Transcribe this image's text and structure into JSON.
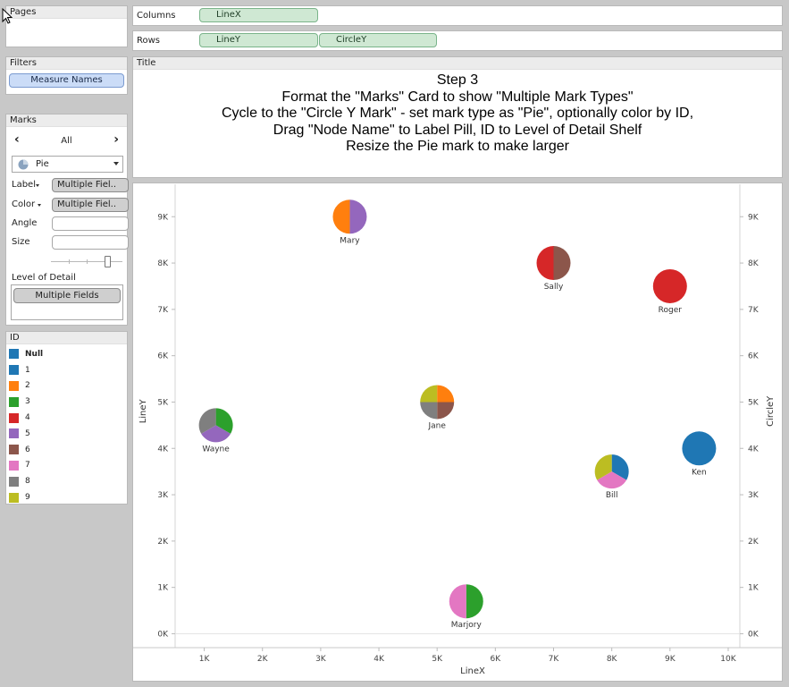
{
  "pages": {
    "title": "Pages"
  },
  "filters": {
    "title": "Filters",
    "items": [
      "Measure Names"
    ]
  },
  "marks": {
    "title": "Marks",
    "selector": {
      "prev": "‹",
      "label": "All",
      "next": "›"
    },
    "mark_type": "Pie",
    "label_shelf": {
      "label": "Label",
      "value": "Multiple Fiel.."
    },
    "color_shelf": {
      "label": "Color",
      "value": "Multiple Fiel.."
    },
    "angle_label": "Angle",
    "size_label": "Size",
    "size_slider": 0.8,
    "lod_title": "Level of Detail",
    "lod_value": "Multiple Fields"
  },
  "legend": {
    "title": "ID",
    "items": [
      {
        "label": "Null",
        "color": "#1f77b4"
      },
      {
        "label": "1",
        "color": "#1f77b4"
      },
      {
        "label": "2",
        "color": "#ff7f0e"
      },
      {
        "label": "3",
        "color": "#2ca02c"
      },
      {
        "label": "4",
        "color": "#d62728"
      },
      {
        "label": "5",
        "color": "#9467bd"
      },
      {
        "label": "6",
        "color": "#8c564b"
      },
      {
        "label": "7",
        "color": "#e377c2"
      },
      {
        "label": "8",
        "color": "#7f7f7f"
      },
      {
        "label": "9",
        "color": "#bcbd22"
      }
    ]
  },
  "columns": {
    "label": "Columns",
    "pill": "LineX"
  },
  "rows": {
    "label": "Rows",
    "pills": [
      "LineY",
      "CircleY"
    ]
  },
  "title_panel": {
    "title": "Title",
    "lines": [
      "Step 3",
      "Format the \"Marks\" Card to show \"Multiple Mark Types\"",
      "Cycle to the \"Circle Y Mark\"  - set mark type as \"Pie\", optionally color by ID,",
      "Drag \"Node Name\" to Label Pill, ID to Level of Detail Shelf",
      "Resize the Pie mark to make larger"
    ]
  },
  "chart_data": {
    "type": "scatter",
    "xlabel": "LineX",
    "ylabel": "LineY",
    "y2label": "CircleY",
    "xlim": [
      500,
      10200
    ],
    "ylim": [
      -300,
      9700
    ],
    "xticks": [
      1000,
      2000,
      3000,
      4000,
      5000,
      6000,
      7000,
      8000,
      9000,
      10000
    ],
    "xtick_labels": [
      "1K",
      "2K",
      "3K",
      "4K",
      "5K",
      "6K",
      "7K",
      "8K",
      "9K",
      "10K"
    ],
    "yticks": [
      0,
      1000,
      2000,
      3000,
      4000,
      5000,
      6000,
      7000,
      8000,
      9000
    ],
    "ytick_labels": [
      "0K",
      "1K",
      "2K",
      "3K",
      "4K",
      "5K",
      "6K",
      "7K",
      "8K",
      "9K"
    ],
    "points": [
      {
        "name": "Mary",
        "x": 3500,
        "y": 9000,
        "slices": [
          {
            "id": "5",
            "color": "#9467bd",
            "value": 1
          },
          {
            "id": "2",
            "color": "#ff7f0e",
            "value": 1
          }
        ]
      },
      {
        "name": "Sally",
        "x": 7000,
        "y": 8000,
        "slices": [
          {
            "id": "6",
            "color": "#8c564b",
            "value": 1
          },
          {
            "id": "4",
            "color": "#d62728",
            "value": 1
          }
        ]
      },
      {
        "name": "Roger",
        "x": 9000,
        "y": 7500,
        "slices": [
          {
            "id": "4",
            "color": "#d62728",
            "value": 1
          }
        ]
      },
      {
        "name": "Jane",
        "x": 5000,
        "y": 5000,
        "slices": [
          {
            "id": "2",
            "color": "#ff7f0e",
            "value": 1
          },
          {
            "id": "6",
            "color": "#8c564b",
            "value": 1
          },
          {
            "id": "8",
            "color": "#7f7f7f",
            "value": 1
          },
          {
            "id": "9",
            "color": "#bcbd22",
            "value": 1
          }
        ]
      },
      {
        "name": "Wayne",
        "x": 1200,
        "y": 4500,
        "slices": [
          {
            "id": "3",
            "color": "#2ca02c",
            "value": 1
          },
          {
            "id": "5",
            "color": "#9467bd",
            "value": 1
          },
          {
            "id": "8",
            "color": "#7f7f7f",
            "value": 1
          }
        ]
      },
      {
        "name": "Ken",
        "x": 9500,
        "y": 4000,
        "slices": [
          {
            "id": "1",
            "color": "#1f77b4",
            "value": 1
          }
        ]
      },
      {
        "name": "Bill",
        "x": 8000,
        "y": 3500,
        "slices": [
          {
            "id": "1",
            "color": "#1f77b4",
            "value": 1
          },
          {
            "id": "7",
            "color": "#e377c2",
            "value": 1
          },
          {
            "id": "9",
            "color": "#bcbd22",
            "value": 1
          }
        ]
      },
      {
        "name": "Marjory",
        "x": 5500,
        "y": 700,
        "slices": [
          {
            "id": "3",
            "color": "#2ca02c",
            "value": 1
          },
          {
            "id": "7",
            "color": "#e377c2",
            "value": 1
          }
        ]
      }
    ]
  }
}
